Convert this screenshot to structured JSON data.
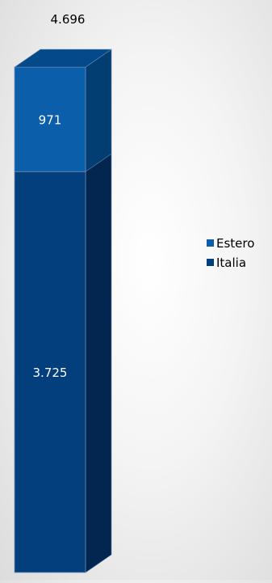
{
  "chart_data": {
    "type": "bar",
    "stacked": true,
    "three_d": true,
    "categories": [
      ""
    ],
    "series": [
      {
        "name": "Italia",
        "values": [
          3725
        ],
        "label": "3.725",
        "color": "#033f7d"
      },
      {
        "name": "Estero",
        "values": [
          971
        ],
        "label": "971",
        "color": "#0b5faa"
      }
    ],
    "total": {
      "value": 4696,
      "label": "4.696"
    },
    "legend": {
      "position": "right",
      "order": [
        "Estero",
        "Italia"
      ]
    },
    "grid": false,
    "axes_visible": false,
    "colors": {
      "side_face_italia": "#022650",
      "side_face_estero": "#033e73",
      "top_face": "#044a8a",
      "data_label": "#ffffff",
      "total_label": "#000000"
    }
  }
}
